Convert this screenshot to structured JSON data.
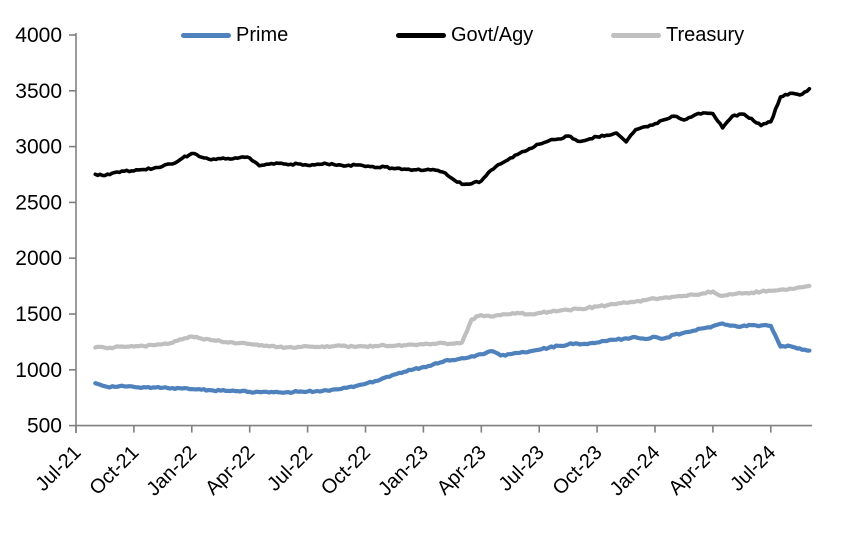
{
  "chart_data": {
    "type": "line",
    "x_tick_labels": [
      "Jul-21",
      "Oct-21",
      "Jan-22",
      "Apr-22",
      "Jul-22",
      "Oct-22",
      "Jan-23",
      "Apr-23",
      "Jul-23",
      "Oct-23",
      "Jan-24",
      "Apr-24",
      "Jul-24"
    ],
    "y_ticks": [
      500,
      1000,
      1500,
      2000,
      2500,
      3000,
      3500,
      4000
    ],
    "ylim": [
      500,
      4000
    ],
    "x_months_span": 38,
    "series_start_month_offset": 1.0,
    "series_step_months": 0.5,
    "grid": "off",
    "legend_position": "top",
    "axis_color": "#808080",
    "background_color": "#ffffff",
    "series": [
      {
        "name": "Prime",
        "color": "#4F81BD",
        "values": [
          880,
          852,
          848,
          851,
          847,
          844,
          842,
          840,
          837,
          832,
          827,
          822,
          817,
          813,
          810,
          806,
          803,
          800,
          797,
          798,
          800,
          803,
          806,
          810,
          815,
          824,
          838,
          855,
          875,
          900,
          930,
          958,
          982,
          1005,
          1025,
          1048,
          1070,
          1088,
          1105,
          1122,
          1140,
          1168,
          1128,
          1140,
          1152,
          1165,
          1180,
          1198,
          1215,
          1228,
          1235,
          1230,
          1245,
          1258,
          1270,
          1282,
          1292,
          1275,
          1295,
          1282,
          1315,
          1332,
          1350,
          1372,
          1392,
          1415,
          1396,
          1390,
          1400,
          1397,
          1394,
          1208,
          1212,
          1192,
          1172
        ]
      },
      {
        "name": "Govt/Agy",
        "color": "#000000",
        "values": [
          2752,
          2740,
          2768,
          2780,
          2782,
          2795,
          2805,
          2825,
          2845,
          2895,
          2938,
          2905,
          2882,
          2892,
          2888,
          2902,
          2898,
          2828,
          2842,
          2850,
          2838,
          2845,
          2832,
          2842,
          2845,
          2832,
          2828,
          2835,
          2822,
          2812,
          2818,
          2802,
          2798,
          2792,
          2788,
          2795,
          2772,
          2712,
          2662,
          2668,
          2692,
          2788,
          2845,
          2898,
          2942,
          2982,
          3022,
          3052,
          3068,
          3095,
          3048,
          3062,
          3088,
          3102,
          3122,
          3042,
          3152,
          3178,
          3205,
          3242,
          3272,
          3238,
          3278,
          3302,
          3295,
          3168,
          3272,
          3292,
          3252,
          3188,
          3222,
          3445,
          3478,
          3462,
          3518
        ]
      },
      {
        "name": "Treasury",
        "color": "#BFBFBF",
        "values": [
          1200,
          1198,
          1202,
          1205,
          1208,
          1213,
          1220,
          1230,
          1243,
          1272,
          1298,
          1280,
          1265,
          1255,
          1248,
          1240,
          1232,
          1218,
          1210,
          1205,
          1202,
          1206,
          1210,
          1205,
          1212,
          1216,
          1210,
          1205,
          1210,
          1214,
          1218,
          1214,
          1220,
          1225,
          1228,
          1234,
          1240,
          1235,
          1245,
          1452,
          1490,
          1478,
          1490,
          1498,
          1505,
          1498,
          1510,
          1520,
          1528,
          1536,
          1545,
          1555,
          1566,
          1578,
          1590,
          1600,
          1612,
          1625,
          1638,
          1648,
          1655,
          1663,
          1672,
          1685,
          1702,
          1662,
          1675,
          1684,
          1692,
          1700,
          1708,
          1718,
          1728,
          1740,
          1752
        ]
      }
    ]
  },
  "legend": {
    "items": [
      {
        "label": "Prime"
      },
      {
        "label": "Govt/Agy"
      },
      {
        "label": "Treasury"
      }
    ]
  }
}
